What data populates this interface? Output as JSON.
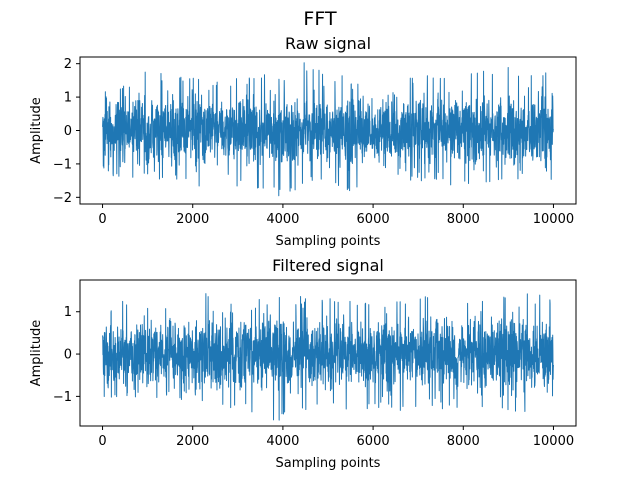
{
  "figure_title": "FFT",
  "chart_data": [
    {
      "type": "line",
      "title": "Raw signal",
      "xlabel": "Sampling points",
      "ylabel": "Amplitude",
      "xlim": [
        -500,
        10500
      ],
      "ylim": [
        -2.2,
        2.2
      ],
      "xticks": [
        0,
        2000,
        4000,
        6000,
        8000,
        10000
      ],
      "yticks": [
        -2,
        -1,
        0,
        1,
        2
      ],
      "x_range": [
        0,
        10000
      ],
      "noise_std": 0.5,
      "envelope_max": [
        1.3,
        1.4,
        1.95,
        1.6,
        1.75,
        1.45,
        1.6,
        1.75,
        1.6,
        2.1,
        1.75,
        1.6,
        1.5,
        1.75,
        1.6,
        1.75,
        1.75,
        1.95,
        1.9,
        1.75,
        1.8
      ],
      "envelope_min": [
        -1.4,
        -1.45,
        -1.3,
        -1.6,
        -1.85,
        -1.5,
        -1.7,
        -1.9,
        -2.05,
        -1.6,
        -1.7,
        -2.05,
        -1.5,
        -1.5,
        -1.5,
        -1.65,
        -1.75,
        -1.6,
        -1.7,
        -2.05,
        -1.4
      ],
      "color": "#1f77b4",
      "grid": false,
      "legend": "none"
    },
    {
      "type": "line",
      "title": "Filtered signal",
      "xlabel": "Sampling points",
      "ylabel": "Amplitude",
      "xlim": [
        -500,
        10500
      ],
      "ylim": [
        -1.7,
        1.75
      ],
      "xticks": [
        0,
        2000,
        4000,
        6000,
        8000,
        10000
      ],
      "yticks": [
        -1,
        0,
        1
      ],
      "x_range": [
        0,
        10000
      ],
      "noise_std": 0.4,
      "envelope_max": [
        1.05,
        1.3,
        1.2,
        1.4,
        1.62,
        1.35,
        1.2,
        1.3,
        1.45,
        1.35,
        1.4,
        1.3,
        1.3,
        1.35,
        1.4,
        1.3,
        1.35,
        1.4,
        1.4,
        1.6,
        1.35
      ],
      "envelope_min": [
        -1.0,
        -1.05,
        -1.1,
        -1.1,
        -1.2,
        -1.3,
        -1.35,
        -1.6,
        -1.6,
        -1.4,
        -1.3,
        -1.4,
        -1.3,
        -1.35,
        -1.4,
        -1.3,
        -1.35,
        -1.45,
        -1.35,
        -1.4,
        -1.0
      ],
      "color": "#1f77b4",
      "grid": false,
      "legend": "none"
    }
  ]
}
